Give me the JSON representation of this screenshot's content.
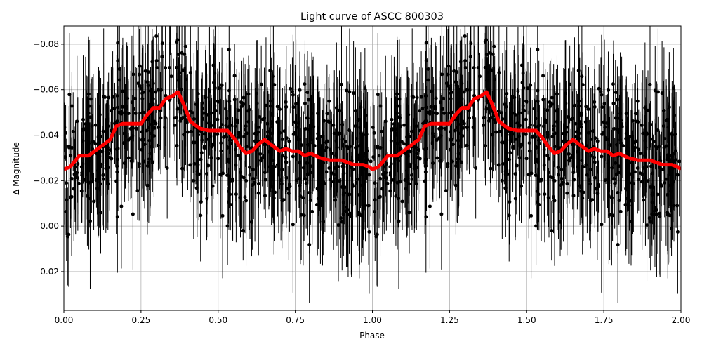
{
  "chart_data": {
    "type": "scatter",
    "title": "Light curve of ASCC 800303",
    "xlabel": "Phase",
    "ylabel": "Δ Magnitude",
    "xlim": [
      0,
      2
    ],
    "ylim": [
      0.037,
      -0.088
    ],
    "y_inverted": true,
    "grid": true,
    "x_ticks": [
      0,
      0.25,
      0.5,
      0.75,
      1.0,
      1.25,
      1.5,
      1.75,
      2.0
    ],
    "x_tick_labels": [
      "0.00",
      "0.25",
      "0.50",
      "0.75",
      "1.00",
      "1.25",
      "1.50",
      "1.75",
      "2.00"
    ],
    "y_ticks": [
      -0.08,
      -0.06,
      -0.04,
      -0.02,
      0.0,
      0.02
    ],
    "y_tick_labels": [
      "−0.08",
      "−0.06",
      "−0.04",
      "−0.02",
      "0.00",
      "0.02"
    ],
    "series": [
      {
        "kind": "errorbar-scatter",
        "color": "#000000",
        "description_only": false,
        "approx_point_count": 1400,
        "approx_scatter_sigma": 0.015,
        "approx_errorbar_halfwidth": 0.02
      },
      {
        "kind": "binned-mean-line",
        "color": "#ff0000",
        "x": [
          0.0,
          0.02,
          0.05,
          0.08,
          0.1,
          0.12,
          0.15,
          0.17,
          0.19,
          0.21,
          0.23,
          0.25,
          0.27,
          0.29,
          0.31,
          0.33,
          0.35,
          0.37,
          0.39,
          0.41,
          0.44,
          0.47,
          0.5,
          0.53,
          0.55,
          0.57,
          0.59,
          0.61,
          0.63,
          0.65,
          0.67,
          0.7,
          0.72,
          0.74,
          0.76,
          0.78,
          0.8,
          0.83,
          0.86,
          0.9,
          0.94,
          0.97,
          0.99,
          1.0
        ],
        "y": [
          -0.025,
          -0.026,
          -0.031,
          -0.031,
          -0.033,
          -0.035,
          -0.038,
          -0.044,
          -0.045,
          -0.045,
          -0.045,
          -0.045,
          -0.049,
          -0.052,
          -0.052,
          -0.056,
          -0.057,
          -0.059,
          -0.053,
          -0.046,
          -0.043,
          -0.042,
          -0.042,
          -0.042,
          -0.039,
          -0.035,
          -0.032,
          -0.033,
          -0.036,
          -0.038,
          -0.036,
          -0.033,
          -0.034,
          -0.033,
          -0.033,
          -0.031,
          -0.032,
          -0.03,
          -0.029,
          -0.029,
          -0.027,
          -0.027,
          -0.026,
          -0.025
        ]
      }
    ]
  }
}
